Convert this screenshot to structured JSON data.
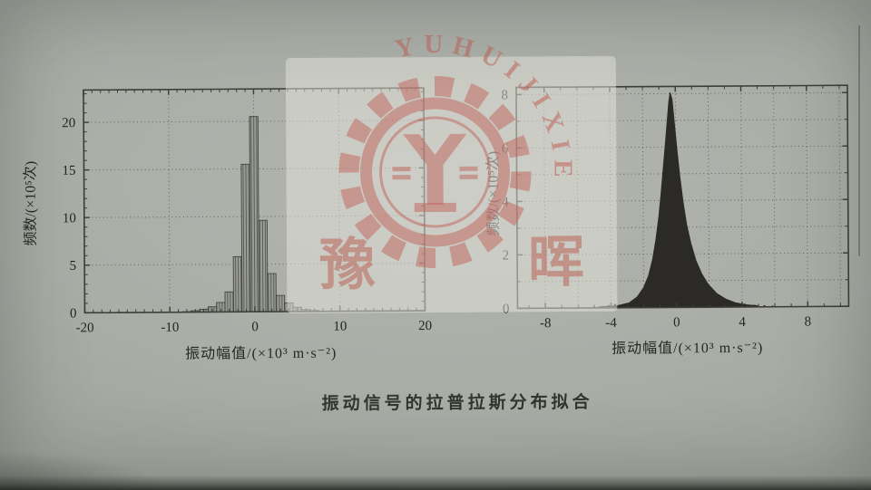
{
  "caption": {
    "text": "振动信号的拉普拉斯分布拟合"
  },
  "watermark": {
    "arc_text": "YUHUIJIXIE",
    "char_left": "豫",
    "char_right": "晖",
    "color": "#bf6257"
  },
  "chart_data": [
    {
      "type": "bar",
      "xlabel": "振动幅值/(×10³ m·s⁻²)",
      "ylabel": "频数/(×10⁵次)",
      "categories": [
        -8,
        -7,
        -6,
        -5,
        -4,
        -3,
        -2,
        -1,
        0,
        1,
        2,
        3,
        4,
        5,
        6,
        7
      ],
      "values": [
        0.05,
        0.15,
        0.3,
        0.55,
        1.0,
        2.1,
        5.8,
        15.5,
        20.5,
        9.6,
        4.0,
        1.7,
        0.9,
        0.45,
        0.2,
        0.1
      ],
      "bar_width": 1,
      "xlim": [
        -20,
        20
      ],
      "ylim": [
        0,
        23.4
      ],
      "xticks": [
        -20,
        -10,
        0,
        10,
        20
      ],
      "yticks": [
        0,
        5,
        10,
        15,
        20
      ],
      "xgrid": [
        -10,
        0,
        10
      ],
      "ygrid": [
        5,
        10,
        15,
        20
      ],
      "xminor_step": 1,
      "yminor_step": 1,
      "grid": true,
      "legend": null
    },
    {
      "type": "area",
      "xlabel": "振动幅值/(×10³ m·s⁻²)",
      "ylabel": "频数/(×10⁵次)",
      "profile": [
        [
          -4.8,
          0.03
        ],
        [
          -3.6,
          0.08
        ],
        [
          -2.9,
          0.18
        ],
        [
          -2.4,
          0.4
        ],
        [
          -2.0,
          0.75
        ],
        [
          -1.7,
          1.2
        ],
        [
          -1.45,
          1.8
        ],
        [
          -1.25,
          2.5
        ],
        [
          -1.05,
          3.4
        ],
        [
          -0.9,
          4.3
        ],
        [
          -0.75,
          5.3
        ],
        [
          -0.6,
          6.3
        ],
        [
          -0.5,
          7.0
        ],
        [
          -0.4,
          7.7
        ],
        [
          -0.32,
          8.05
        ],
        [
          -0.2,
          7.8
        ],
        [
          -0.05,
          6.8
        ],
        [
          0.1,
          5.8
        ],
        [
          0.25,
          4.9
        ],
        [
          0.45,
          3.9
        ],
        [
          0.65,
          3.1
        ],
        [
          0.9,
          2.4
        ],
        [
          1.2,
          1.75
        ],
        [
          1.55,
          1.25
        ],
        [
          1.95,
          0.85
        ],
        [
          2.45,
          0.52
        ],
        [
          3.0,
          0.3
        ],
        [
          3.6,
          0.16
        ],
        [
          4.3,
          0.08
        ],
        [
          5.0,
          0.04
        ]
      ],
      "scatter": [
        [
          -5.1,
          0.05
        ],
        [
          -4.6,
          0.07
        ],
        [
          -4.2,
          0.1
        ],
        [
          -3.8,
          0.14
        ],
        [
          4.1,
          0.12
        ],
        [
          4.7,
          0.08
        ],
        [
          5.3,
          0.06
        ],
        [
          5.8,
          0.04
        ]
      ],
      "xlim": [
        -9.7,
        10.5
      ],
      "ylim": [
        0,
        8.27
      ],
      "xticks": [
        -8,
        -4,
        0,
        4,
        8
      ],
      "yticks": [
        0,
        2,
        4,
        6,
        8
      ],
      "xgrid": [
        -8,
        -6,
        -4,
        -2,
        0,
        2,
        4,
        6,
        8,
        10
      ],
      "ygrid": [
        1,
        2,
        3,
        4,
        5,
        6,
        7,
        8
      ],
      "xminor_step": 1,
      "yminor_step": 1,
      "grid": true,
      "legend": null
    }
  ]
}
